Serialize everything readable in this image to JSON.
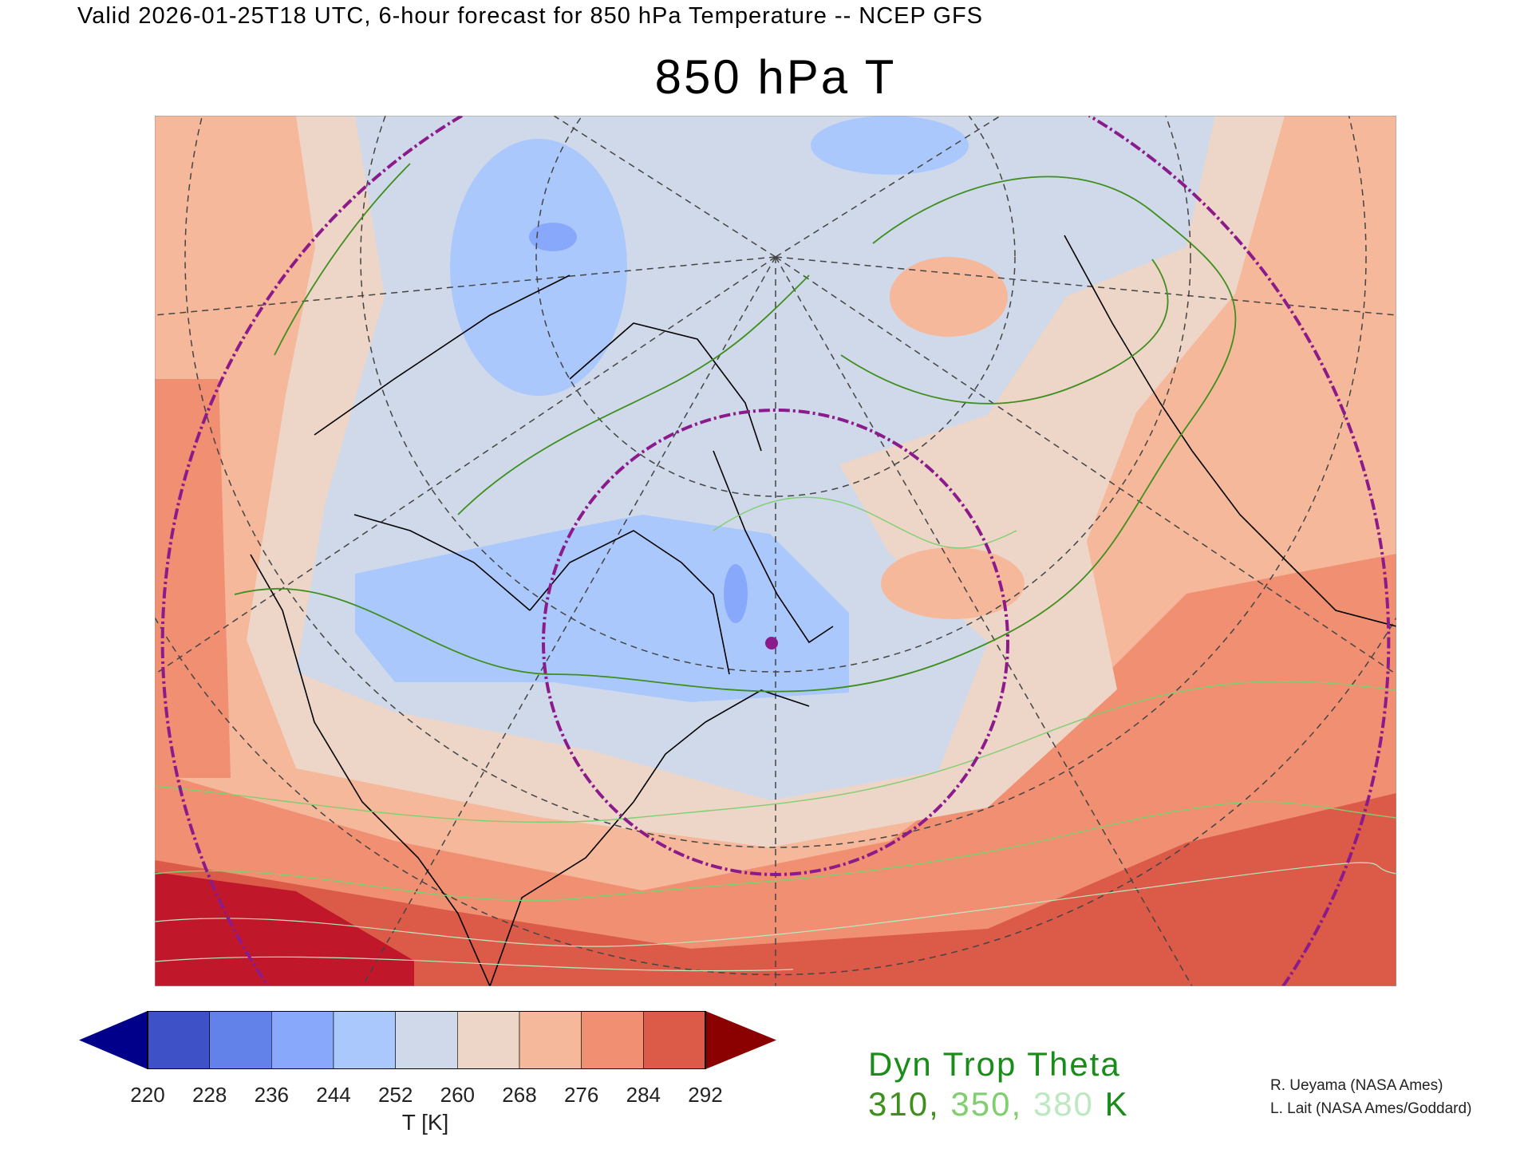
{
  "header": {
    "valid_line": "Valid 2026-01-25T18 UTC, 6-hour forecast for 850 hPa Temperature -- NCEP GFS",
    "title": "850 hPa T"
  },
  "colorbar": {
    "label": "T [K]",
    "ticks": [
      "220",
      "228",
      "236",
      "244",
      "252",
      "260",
      "268",
      "276",
      "284",
      "292"
    ],
    "under_color": "#00008b",
    "over_color": "#8b0000",
    "colors": [
      "#3f51c6",
      "#6382e9",
      "#88a8fb",
      "#abc8fd",
      "#d0d9ea",
      "#edd5c8",
      "#f6b89b",
      "#f08f71",
      "#dc5a48"
    ]
  },
  "overlay_legend": {
    "title": "Dyn Trop Theta",
    "values": [
      {
        "text": "310",
        "color": "#3f8f1f"
      },
      {
        "text": "350",
        "color": "#7fcf70"
      },
      {
        "text": "380",
        "color": "#bde8c0"
      }
    ],
    "separator": ", ",
    "unit": " K"
  },
  "credits": [
    "R. Ueyama (NASA Ames)",
    "L. Lait (NASA Ames/Goddard)"
  ],
  "map_colors": {
    "circle": "#8b1a8b",
    "contour_310": "#3f8f1f",
    "contour_350": "#7fcf70",
    "coast": "#000000"
  }
}
